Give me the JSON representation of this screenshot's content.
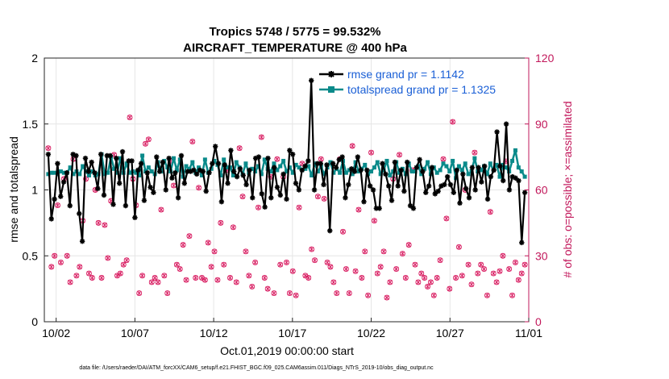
{
  "chart_data": {
    "type": "line",
    "title": "Tropics 5748 / 5775 = 99.532%",
    "subtitle": "AIRCRAFT_TEMPERATURE @ 400 hPa",
    "xlabel": "Oct.01,2019 00:00:00 start",
    "ylabel": "rmse and totalspread",
    "y2label": "# of obs: o=possible; ×=assimilated",
    "footnote": "data file: /Users/raeder/DAI/ATM_forcXX/CAM6_setup/f.e21.FHIST_BGC.f09_025.CAM6assim.011/Diags_NTrS_2019-10/obs_diag_output.nc",
    "x_ticks": [
      "10/02",
      "10/07",
      "10/12",
      "10/17",
      "10/22",
      "10/27",
      "11/01"
    ],
    "x_tick_days": [
      2,
      7,
      12,
      17,
      22,
      27,
      32
    ],
    "xlim": [
      1.25,
      32
    ],
    "ylim": [
      0,
      2
    ],
    "y_ticks": [
      "0",
      "0.5",
      "1",
      "1.5",
      "2"
    ],
    "y2lim": [
      0,
      120
    ],
    "y2_ticks": [
      "0",
      "30",
      "60",
      "90",
      "120"
    ],
    "grid": true,
    "legend_position": "top-right",
    "colors": {
      "rmse": "#000000",
      "spread": "#0a8a8a",
      "obs": "#d81b60",
      "legend": "#1a5fd6"
    },
    "series": [
      {
        "name": "rmse grand pr = 1.1142",
        "values": [
          1.27,
          0.78,
          0.93,
          1.2,
          0.95,
          1.06,
          1.13,
          0.88,
          1.27,
          1.26,
          0.82,
          0.61,
          1.24,
          1.14,
          1.21,
          1.13,
          1.01,
          1.27,
          0.96,
          1.26,
          1.26,
          0.89,
          1.24,
          1.05,
          1.29,
          0.88,
          1.22,
          1.22,
          0.79,
          1.15,
          1.2,
          0.92,
          1.13,
          1.02,
          0.98,
          1.25,
          1.14,
          1.21,
          1.0,
          1.24,
          1.09,
          1.13,
          0.94,
          1.26,
          1.05,
          1.14,
          1.14,
          1.15,
          1.12,
          1.15,
          1.14,
          0.99,
          1.13,
          1.2,
          1.33,
          1.2,
          0.91,
          1.19,
          1.05,
          1.3,
          1.14,
          1.1,
          1.16,
          1.11,
          1.04,
          1.15,
          0.94,
          1.24,
          1.25,
          0.97,
          0.87,
          1.24,
          0.94,
          1.17,
          1.02,
          0.96,
          1.12,
          0.93,
          1.3,
          1.27,
          1.05,
          1.0,
          1.15,
          1.18,
          1.22,
          1.83,
          1.0,
          1.2,
          1.2,
          1.04,
          1.19,
          0.69,
          1.2,
          1.17,
          1.23,
          1.25,
          0.94,
          1.04,
          1.16,
          1.14,
          1.25,
          1.15,
          0.91,
          1.15,
          1.03,
          1.0,
          0.86,
          0.86,
          1.2,
          1.12,
          1.03,
          0.92,
          1.21,
          1.03,
          1.15,
          0.99,
          1.21,
          0.88,
          0.86,
          1.17,
          1.23,
          1.14,
          0.98,
          1.03,
          1.17,
          0.97,
          0.99,
          1.03,
          1.04,
          1.1,
          1.04,
          0.98,
          1.15,
          0.9,
          1.12,
          1.01,
          0.94,
          1.17,
          1.0,
          1.17,
          1.06,
          1.18,
          0.93,
          1.1,
          1.15,
          1.44,
          1.18,
          1.07,
          1.5,
          1.0,
          1.1,
          1.09,
          1.07,
          0.6,
          0.98
        ],
        "color": "#000000"
      },
      {
        "name": "totalspread grand pr = 1.1325",
        "values": [
          1.12,
          1.13,
          1.13,
          1.12,
          1.14,
          1.13,
          1.13,
          1.17,
          1.12,
          1.14,
          1.12,
          1.18,
          1.14,
          1.11,
          1.14,
          1.11,
          1.12,
          1.27,
          1.12,
          1.13,
          1.25,
          1.16,
          1.13,
          1.24,
          1.13,
          1.2,
          1.13,
          1.14,
          1.13,
          1.11,
          1.26,
          1.14,
          1.17,
          1.14,
          1.12,
          1.21,
          1.14,
          1.22,
          1.17,
          1.14,
          1.24,
          1.15,
          1.23,
          1.1,
          1.18,
          1.16,
          1.21,
          1.13,
          1.17,
          1.11,
          1.23,
          1.13,
          1.16,
          1.22,
          1.19,
          1.11,
          1.23,
          1.17,
          1.17,
          1.11,
          1.21,
          1.17,
          1.12,
          1.2,
          1.13,
          1.16,
          1.14,
          1.18,
          1.12,
          1.23,
          1.16,
          1.14,
          1.2,
          1.15,
          1.18,
          1.22,
          1.14,
          1.17,
          1.13,
          1.19,
          1.17,
          1.15,
          1.16,
          1.18,
          1.11,
          1.2,
          1.14,
          1.18,
          1.12,
          1.17,
          1.21,
          1.13,
          1.16,
          1.13,
          1.22,
          1.13,
          1.15,
          1.12,
          1.21,
          1.14,
          1.16,
          1.19,
          1.12,
          1.14,
          1.17,
          1.21,
          1.12,
          1.15,
          1.22,
          1.11,
          1.14,
          1.21,
          1.13,
          1.16,
          1.12,
          1.2,
          1.14,
          1.14,
          1.18,
          1.12,
          1.16,
          1.21,
          1.12,
          1.17,
          1.13,
          1.15,
          1.2,
          1.18,
          1.14,
          1.22,
          1.09,
          1.18,
          1.15,
          1.2,
          1.12,
          1.14,
          1.24,
          1.14,
          1.15,
          1.18,
          1.12,
          1.2,
          1.15,
          1.19,
          1.1,
          1.19,
          1.17,
          1.14,
          1.22,
          1.3,
          1.17,
          1.14,
          1.1
        ],
        "color": "#0a8a8a"
      },
      {
        "name": "obs_possible",
        "axis": "right",
        "values": [
          79,
          25,
          30,
          53,
          27,
          65,
          30,
          18,
          74,
          21,
          25,
          46,
          65,
          22,
          20,
          60,
          45,
          20,
          44,
          29,
          55,
          76,
          21,
          22,
          26,
          28,
          93,
          65,
          53,
          13,
          21,
          81,
          83,
          18,
          20,
          18,
          51,
          21,
          13,
          73,
          62,
          26,
          24,
          35,
          19,
          39,
          82,
          20,
          61,
          20,
          19,
          36,
          25,
          32,
          19,
          45,
          26,
          69,
          20,
          43,
          18,
          79,
          57,
          32,
          21,
          16,
          27,
          52,
          84,
          20,
          15,
          66,
          13,
          74,
          26,
          66,
          27,
          13,
          23,
          12,
          52,
          72,
          21,
          20,
          33,
          28,
          57,
          74,
          56,
          27,
          25,
          18,
          13,
          74,
          41,
          24,
          13,
          80,
          23,
          51,
          20,
          32,
          12,
          77,
          46,
          22,
          25,
          32,
          11,
          18,
          65,
          24,
          76,
          31,
          20,
          35,
          69,
          26,
          18,
          22,
          20,
          16,
          18,
          12,
          20,
          28,
          74,
          47,
          15,
          91,
          20,
          34,
          21,
          60,
          26,
          17,
          77,
          22,
          26,
          24,
          12,
          50,
          22,
          18,
          23,
          30,
          73,
          24,
          12,
          27,
          19,
          22,
          26
        ]
      },
      {
        "name": "obs_assimilated",
        "axis": "right",
        "values": [
          79,
          25,
          30,
          53,
          27,
          65,
          30,
          18,
          74,
          21,
          25,
          46,
          65,
          22,
          20,
          60,
          45,
          20,
          44,
          29,
          55,
          76,
          21,
          22,
          26,
          28,
          93,
          65,
          53,
          13,
          21,
          81,
          83,
          18,
          20,
          18,
          51,
          21,
          13,
          73,
          62,
          26,
          24,
          35,
          19,
          39,
          82,
          20,
          61,
          20,
          19,
          36,
          25,
          32,
          19,
          45,
          26,
          69,
          20,
          43,
          18,
          79,
          57,
          32,
          21,
          16,
          27,
          52,
          84,
          20,
          15,
          66,
          13,
          74,
          26,
          66,
          27,
          13,
          23,
          12,
          52,
          72,
          21,
          20,
          33,
          28,
          57,
          74,
          56,
          27,
          25,
          18,
          13,
          74,
          41,
          24,
          13,
          80,
          23,
          51,
          20,
          32,
          12,
          77,
          46,
          22,
          25,
          32,
          11,
          18,
          65,
          24,
          76,
          31,
          20,
          35,
          69,
          26,
          18,
          22,
          20,
          16,
          18,
          12,
          20,
          28,
          74,
          47,
          15,
          91,
          20,
          34,
          21,
          60,
          26,
          17,
          77,
          22,
          26,
          24,
          12,
          50,
          22,
          18,
          23,
          30,
          73,
          24,
          12,
          27,
          19,
          22,
          26
        ]
      }
    ]
  }
}
